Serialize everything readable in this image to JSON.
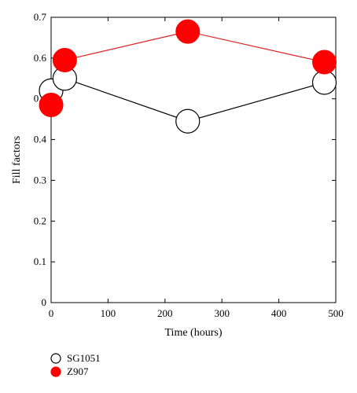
{
  "chart_data": {
    "type": "line",
    "title": "",
    "xlabel": "Time (hours)",
    "ylabel": "Fill factors",
    "xlim": [
      0,
      500
    ],
    "ylim": [
      0,
      0.7
    ],
    "xticks": [
      0,
      100,
      200,
      300,
      400,
      500
    ],
    "yticks": [
      0,
      0.1,
      0.2,
      0.3,
      0.4,
      0.5,
      0.6,
      0.7
    ],
    "xtick_labels": [
      "0",
      "100",
      "200",
      "300",
      "400",
      "500"
    ],
    "ytick_labels": [
      "0",
      "0.1",
      "0.2",
      "0.3",
      "0.4",
      "0.5",
      "0.6",
      "0.7"
    ],
    "grid": false,
    "legend_position": "bottom-left",
    "series": [
      {
        "name": "SG1051",
        "marker": "open-circle",
        "line_color": "#000000",
        "marker_fill": "#ffffff",
        "marker_stroke": "#000000",
        "x": [
          0,
          24,
          240,
          480
        ],
        "y": [
          0.52,
          0.55,
          0.445,
          0.54
        ]
      },
      {
        "name": "Z907",
        "marker": "filled-circle",
        "line_color": "#e02020",
        "marker_fill": "#ff0000",
        "marker_stroke": "#ff0000",
        "x": [
          0,
          24,
          240,
          480
        ],
        "y": [
          0.485,
          0.595,
          0.665,
          0.59
        ]
      }
    ]
  }
}
